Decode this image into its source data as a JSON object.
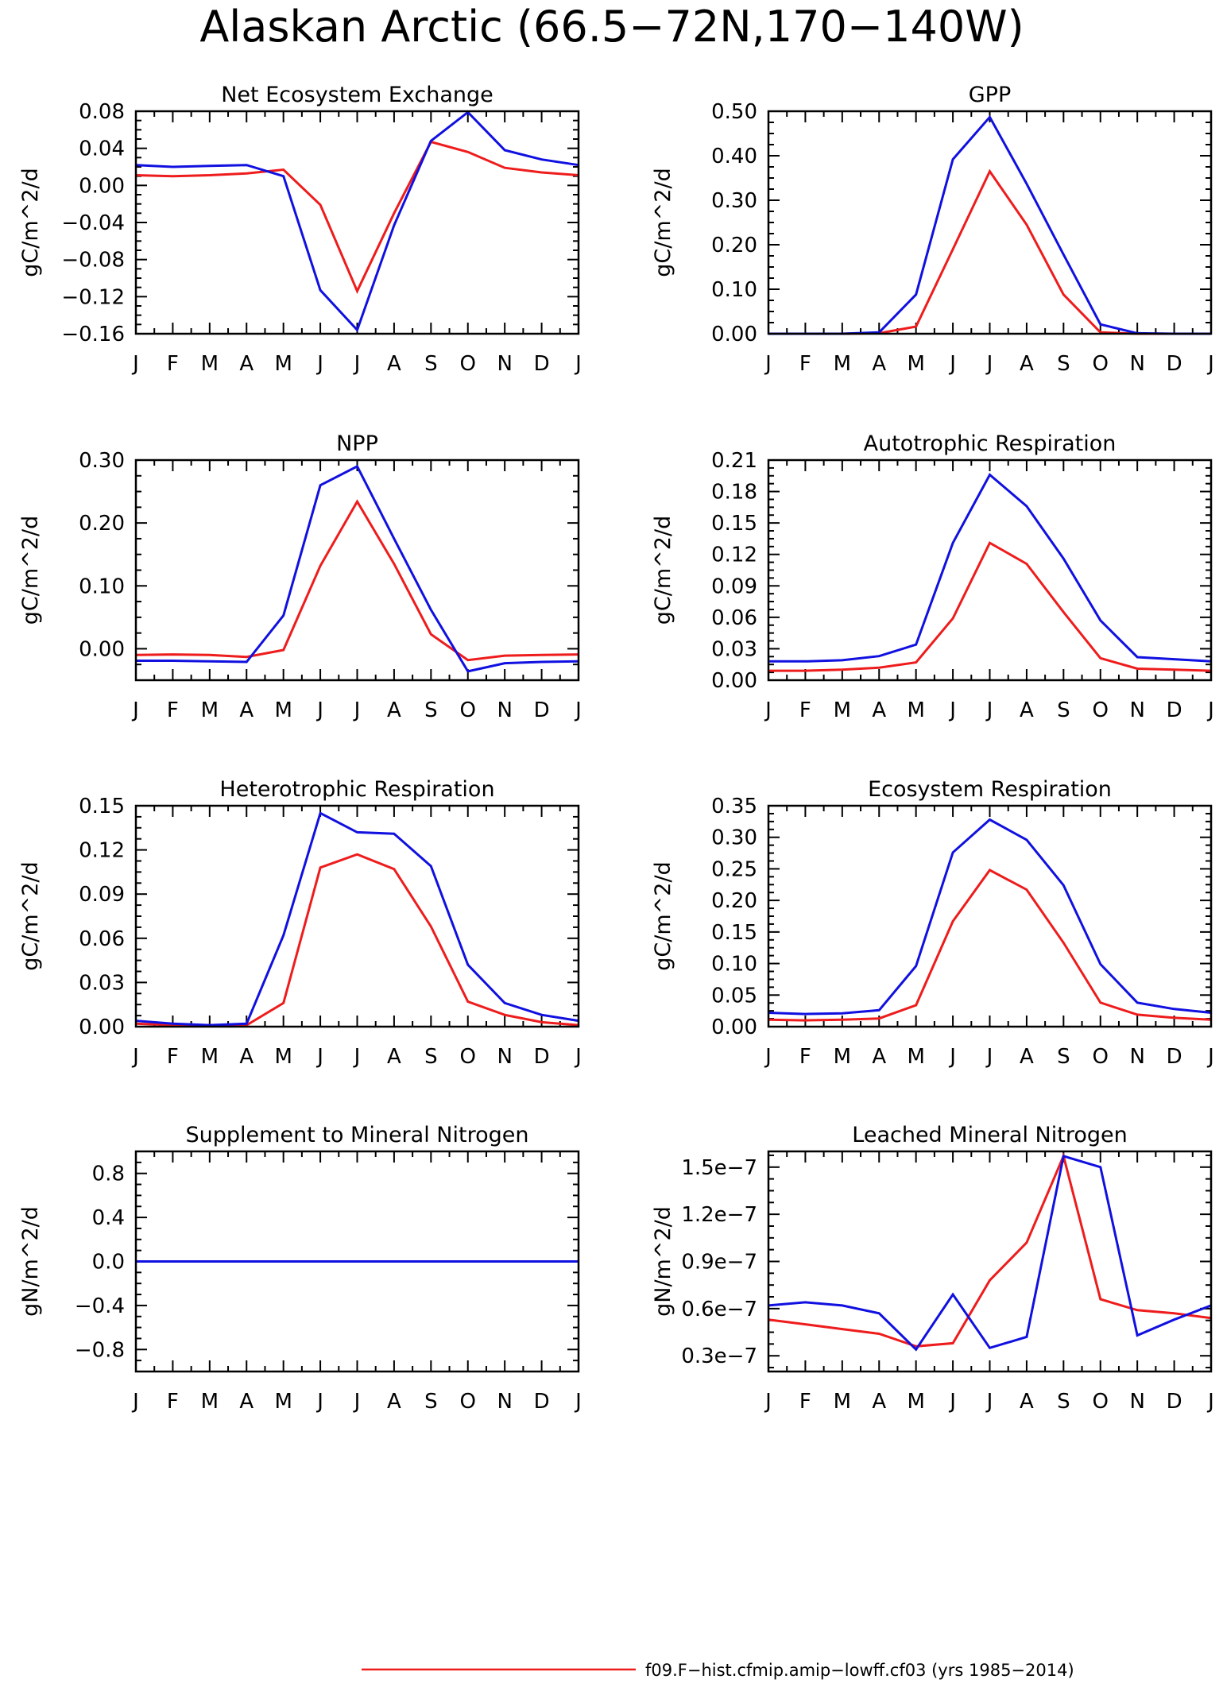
{
  "title": "Alaskan Arctic (66.5−72N,170−140W)",
  "colors": {
    "run1": "#ee1c1c",
    "run2": "#1010e0",
    "axis": "#000000"
  },
  "legend": [
    {
      "label": "f09.F−hist.cfmip.amip−lowff.cf03 (yrs 1985−2014)",
      "color": "#ee1c1c"
    }
  ],
  "chart_data": [
    {
      "type": "line",
      "title": "Net Ecosystem Exchange",
      "ylabel": "gC/m^2/d",
      "categories": [
        "J",
        "F",
        "M",
        "A",
        "M",
        "J",
        "J",
        "A",
        "S",
        "O",
        "N",
        "D",
        "J"
      ],
      "ylim": [
        -0.16,
        0.08
      ],
      "yticks": [
        0.08,
        0.04,
        0.0,
        -0.04,
        -0.08,
        -0.12,
        -0.16
      ],
      "ytick_labels": [
        "0.08",
        "0.04",
        "0.00",
        "−0.04",
        "−0.08",
        "−0.12",
        "−0.16"
      ],
      "series": [
        {
          "color": "#ee1c1c",
          "values": [
            0.011,
            0.01,
            0.011,
            0.013,
            0.017,
            -0.021,
            -0.114,
            -0.03,
            0.047,
            0.036,
            0.019,
            0.014,
            0.011
          ]
        },
        {
          "color": "#1010e0",
          "values": [
            0.022,
            0.02,
            0.021,
            0.022,
            0.01,
            -0.113,
            -0.156,
            -0.043,
            0.048,
            0.079,
            0.038,
            0.028,
            0.022
          ]
        }
      ]
    },
    {
      "type": "line",
      "title": "GPP",
      "ylabel": "gC/m^2/d",
      "categories": [
        "J",
        "F",
        "M",
        "A",
        "M",
        "J",
        "J",
        "A",
        "S",
        "O",
        "N",
        "D",
        "J"
      ],
      "ylim": [
        0,
        0.5
      ],
      "yticks": [
        0.5,
        0.4,
        0.3,
        0.2,
        0.1,
        0.0
      ],
      "ytick_labels": [
        "0.50",
        "0.40",
        "0.30",
        "0.20",
        "0.10",
        "0.00"
      ],
      "series": [
        {
          "color": "#ee1c1c",
          "values": [
            0,
            0,
            0,
            0.001,
            0.016,
            0.19,
            0.365,
            0.245,
            0.088,
            0.003,
            0,
            0,
            0
          ]
        },
        {
          "color": "#1010e0",
          "values": [
            0,
            0,
            0,
            0.003,
            0.088,
            0.392,
            0.487,
            0.337,
            0.178,
            0.021,
            0.001,
            0,
            0
          ]
        }
      ]
    },
    {
      "type": "line",
      "title": "NPP",
      "ylabel": "gC/m^2/d",
      "categories": [
        "J",
        "F",
        "M",
        "A",
        "M",
        "J",
        "J",
        "A",
        "S",
        "O",
        "N",
        "D",
        "J"
      ],
      "ylim": [
        -0.05,
        0.3
      ],
      "yticks": [
        0.3,
        0.2,
        0.1,
        0.0
      ],
      "ytick_labels": [
        "0.30",
        "0.20",
        "0.10",
        "0.00"
      ],
      "series": [
        {
          "color": "#ee1c1c",
          "values": [
            -0.01,
            -0.009,
            -0.01,
            -0.013,
            -0.002,
            0.132,
            0.234,
            0.135,
            0.023,
            -0.018,
            -0.011,
            -0.01,
            -0.009
          ]
        },
        {
          "color": "#1010e0",
          "values": [
            -0.019,
            -0.019,
            -0.02,
            -0.021,
            0.053,
            0.26,
            0.29,
            0.175,
            0.062,
            -0.036,
            -0.023,
            -0.021,
            -0.02
          ]
        }
      ]
    },
    {
      "type": "line",
      "title": "Autotrophic Respiration",
      "ylabel": "gC/m^2/d",
      "categories": [
        "J",
        "F",
        "M",
        "A",
        "M",
        "J",
        "J",
        "A",
        "S",
        "O",
        "N",
        "D",
        "J"
      ],
      "ylim": [
        0,
        0.21
      ],
      "yticks": [
        0.21,
        0.18,
        0.15,
        0.12,
        0.09,
        0.06,
        0.03,
        0.0
      ],
      "ytick_labels": [
        "0.21",
        "0.18",
        "0.15",
        "0.12",
        "0.09",
        "0.06",
        "0.03",
        "0.00"
      ],
      "series": [
        {
          "color": "#ee1c1c",
          "values": [
            0.009,
            0.009,
            0.01,
            0.012,
            0.017,
            0.059,
            0.131,
            0.111,
            0.065,
            0.021,
            0.011,
            0.01,
            0.009
          ]
        },
        {
          "color": "#1010e0",
          "values": [
            0.018,
            0.018,
            0.019,
            0.023,
            0.034,
            0.131,
            0.196,
            0.166,
            0.116,
            0.057,
            0.022,
            0.02,
            0.018
          ]
        }
      ]
    },
    {
      "type": "line",
      "title": "Heterotrophic Respiration",
      "ylabel": "gC/m^2/d",
      "categories": [
        "J",
        "F",
        "M",
        "A",
        "M",
        "J",
        "J",
        "A",
        "S",
        "O",
        "N",
        "D",
        "J"
      ],
      "ylim": [
        0,
        0.15
      ],
      "yticks": [
        0.15,
        0.12,
        0.09,
        0.06,
        0.03,
        0.0
      ],
      "ytick_labels": [
        "0.15",
        "0.12",
        "0.09",
        "0.06",
        "0.03",
        "0.00"
      ],
      "series": [
        {
          "color": "#ee1c1c",
          "values": [
            0.002,
            0.001,
            0.001,
            0.001,
            0.016,
            0.108,
            0.117,
            0.107,
            0.068,
            0.017,
            0.008,
            0.003,
            0.001
          ]
        },
        {
          "color": "#1010e0",
          "values": [
            0.004,
            0.002,
            0.001,
            0.002,
            0.062,
            0.145,
            0.132,
            0.131,
            0.109,
            0.042,
            0.016,
            0.008,
            0.004
          ]
        }
      ]
    },
    {
      "type": "line",
      "title": "Ecosystem Respiration",
      "ylabel": "gC/m^2/d",
      "categories": [
        "J",
        "F",
        "M",
        "A",
        "M",
        "J",
        "J",
        "A",
        "S",
        "O",
        "N",
        "D",
        "J"
      ],
      "ylim": [
        0,
        0.35
      ],
      "yticks": [
        0.35,
        0.3,
        0.25,
        0.2,
        0.15,
        0.1,
        0.05,
        0.0
      ],
      "ytick_labels": [
        "0.35",
        "0.30",
        "0.25",
        "0.20",
        "0.15",
        "0.10",
        "0.05",
        "0.00"
      ],
      "series": [
        {
          "color": "#ee1c1c",
          "values": [
            0.011,
            0.01,
            0.011,
            0.013,
            0.034,
            0.167,
            0.248,
            0.217,
            0.133,
            0.038,
            0.019,
            0.014,
            0.011
          ]
        },
        {
          "color": "#1010e0",
          "values": [
            0.022,
            0.02,
            0.021,
            0.026,
            0.096,
            0.276,
            0.328,
            0.296,
            0.224,
            0.099,
            0.038,
            0.028,
            0.022
          ]
        }
      ]
    },
    {
      "type": "line",
      "title": "Supplement to Mineral Nitrogen",
      "ylabel": "gN/m^2/d",
      "categories": [
        "J",
        "F",
        "M",
        "A",
        "M",
        "J",
        "J",
        "A",
        "S",
        "O",
        "N",
        "D",
        "J"
      ],
      "ylim": [
        -1.0,
        1.0
      ],
      "yticks": [
        0.8,
        0.4,
        0.0,
        -0.4,
        -0.8
      ],
      "ytick_labels": [
        "0.8",
        "0.4",
        "0.0",
        "−0.4",
        "−0.8"
      ],
      "series": [
        {
          "color": "#ee1c1c",
          "values": [
            0,
            0,
            0,
            0,
            0,
            0,
            0,
            0,
            0,
            0,
            0,
            0,
            0
          ]
        },
        {
          "color": "#1010e0",
          "values": [
            0,
            0,
            0,
            0,
            0,
            0,
            0,
            0,
            0,
            0,
            0,
            0,
            0
          ]
        }
      ]
    },
    {
      "type": "line",
      "title": "Leached Mineral Nitrogen",
      "ylabel": "gN/m^2/d",
      "categories": [
        "J",
        "F",
        "M",
        "A",
        "M",
        "J",
        "J",
        "A",
        "S",
        "O",
        "N",
        "D",
        "J"
      ],
      "ylim": [
        2e-08,
        1.6e-07
      ],
      "yticks": [
        1.5e-07,
        1.2e-07,
        9e-08,
        6e-08,
        3e-08
      ],
      "ytick_labels": [
        "1.5e−7",
        "1.2e−7",
        "0.9e−7",
        "0.6e−7",
        "0.3e−7"
      ],
      "series": [
        {
          "color": "#ee1c1c",
          "values": [
            5.3e-08,
            5e-08,
            4.7e-08,
            4.4e-08,
            3.6e-08,
            3.8e-08,
            7.8e-08,
            1.02e-07,
            1.57e-07,
            6.6e-08,
            5.9e-08,
            5.7e-08,
            5.4e-08
          ]
        },
        {
          "color": "#1010e0",
          "values": [
            6.2e-08,
            6.4e-08,
            6.2e-08,
            5.7e-08,
            3.4e-08,
            6.9e-08,
            3.5e-08,
            4.2e-08,
            1.57e-07,
            1.5e-07,
            4.3e-08,
            5.3e-08,
            6.2e-08
          ]
        }
      ]
    }
  ]
}
